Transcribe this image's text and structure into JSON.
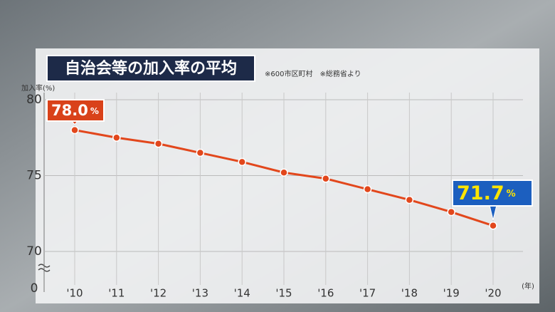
{
  "chart_data": {
    "type": "line",
    "title": "自治会等の加入率の平均",
    "subtitle": "※600市区町村　※総務省より",
    "y_label": "加入率(%)",
    "x_label": "(年)",
    "categories": [
      "'10",
      "'11",
      "'12",
      "'13",
      "'14",
      "'15",
      "'16",
      "'17",
      "'18",
      "'19",
      "'20"
    ],
    "series": [
      {
        "name": "加入率",
        "color": "#e2471c",
        "values": [
          78.0,
          77.5,
          77.1,
          76.5,
          75.9,
          75.2,
          74.8,
          74.1,
          73.4,
          72.6,
          71.7
        ],
        "value_labels": [
          "78.0",
          null,
          null,
          null,
          null,
          null,
          null,
          null,
          null,
          null,
          "71.7"
        ]
      }
    ],
    "value_label_unit": "%",
    "ylim": [
      70,
      80
    ],
    "yticks": [
      70,
      75,
      80
    ],
    "axis_break_tick": 0,
    "grid": true
  }
}
